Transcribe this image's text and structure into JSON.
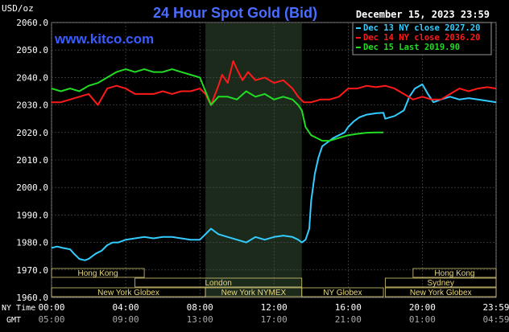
{
  "header": {
    "unit": "USD/oz",
    "title": "24 Hour Spot Gold (Bid)",
    "timestamp": "December 15, 2023 23:59",
    "watermark": "www.kitco.com"
  },
  "colors": {
    "background": "#000000",
    "plot_background": "#000000",
    "night_band": "#1c2a1c",
    "grid": "#555555",
    "axis_text": "#ffffff",
    "title": "#4a6cff",
    "watermark": "#3a5cff",
    "session_box": "#d8c878",
    "session_text": "#e8d880"
  },
  "chart_data": {
    "type": "line",
    "title": "24 Hour Spot Gold (Bid)",
    "ylabel": "USD/oz",
    "ylim": [
      1960,
      2060
    ],
    "yticks": [
      "2060.0",
      "2050.0",
      "2040.0",
      "2030.0",
      "2020.0",
      "2010.0",
      "2000.0",
      "1990.0",
      "1980.0",
      "1970.0",
      "1960.0"
    ],
    "xlim_hours": [
      0,
      23.98
    ],
    "xticks": [
      {
        "t": 0,
        "ny": "00:00",
        "gmt": "05:00"
      },
      {
        "t": 4,
        "ny": "04:00",
        "gmt": "09:00"
      },
      {
        "t": 8,
        "ny": "08:00",
        "gmt": "13:00"
      },
      {
        "t": 12,
        "ny": "12:00",
        "gmt": "17:00"
      },
      {
        "t": 16,
        "ny": "16:00",
        "gmt": "21:00"
      },
      {
        "t": 20,
        "ny": "20:00",
        "gmt": "01:00"
      },
      {
        "t": 23.98,
        "ny": "23:59",
        "gmt": "04:59"
      }
    ],
    "x_row_labels": {
      "ny": "NY Time",
      "gmt": "GMT"
    },
    "shaded_region": [
      8.3,
      13.5
    ],
    "grid": true,
    "legend_position": "top-right",
    "series": [
      {
        "name": "Dec 13 NY close 2027.20",
        "color": "#33ccff",
        "x": [
          0,
          0.3,
          0.6,
          1,
          1.2,
          1.5,
          1.8,
          2,
          2.2,
          2.4,
          2.7,
          3,
          3.3,
          3.6,
          4,
          4.5,
          5,
          5.5,
          6,
          6.5,
          7,
          7.5,
          8,
          8.3,
          8.6,
          9,
          9.5,
          10,
          10.5,
          11,
          11.5,
          12,
          12.5,
          13,
          13.3,
          13.5,
          13.7,
          13.9,
          14.0,
          14.2,
          14.4,
          14.6,
          14.8,
          15,
          15.2,
          15.5,
          15.8,
          16,
          16.3,
          16.6,
          17,
          17.5,
          17.9,
          18.0,
          18.5,
          19,
          19.3,
          19.6,
          20,
          20.3,
          20.6,
          21,
          21.5,
          22,
          22.5,
          23,
          23.5,
          23.98
        ],
        "y": [
          1978,
          1978.5,
          1978,
          1977.5,
          1976,
          1974,
          1973.5,
          1974,
          1975,
          1976,
          1977,
          1979,
          1980,
          1980,
          1981,
          1981.5,
          1982,
          1981.5,
          1982,
          1982,
          1981.5,
          1981,
          1981,
          1983,
          1985,
          1983,
          1982,
          1981,
          1980,
          1982,
          1981,
          1982,
          1982.5,
          1982,
          1981,
          1980,
          1981,
          1985,
          1995,
          2005,
          2011,
          2015,
          2016,
          2017,
          2018,
          2019,
          2020,
          2022,
          2024,
          2025.5,
          2026.5,
          2027,
          2027.2,
          2025,
          2026,
          2028,
          2033,
          2036,
          2037.5,
          2034,
          2031,
          2032,
          2033,
          2032,
          2032.5,
          2032,
          2031.5,
          2031
        ]
      },
      {
        "name": "Dec 14 NY close 2036.20",
        "color": "#ff1a1a",
        "x": [
          0,
          0.5,
          1,
          1.5,
          2,
          2.5,
          3,
          3.5,
          4,
          4.5,
          5,
          5.5,
          6,
          6.5,
          7,
          7.5,
          8,
          8.3,
          8.6,
          9,
          9.2,
          9.5,
          9.8,
          10,
          10.3,
          10.6,
          11,
          11.5,
          12,
          12.5,
          13,
          13.3,
          13.6,
          14,
          14.5,
          15,
          15.5,
          16,
          16.5,
          17,
          17.5,
          18,
          18.5,
          19,
          19.5,
          20,
          20.5,
          21,
          21.5,
          22,
          22.5,
          23,
          23.5,
          23.98
        ],
        "y": [
          2031,
          2031,
          2032,
          2033,
          2034,
          2030,
          2036,
          2037,
          2036,
          2034,
          2034,
          2034,
          2035,
          2034,
          2035,
          2035,
          2036,
          2034,
          2030,
          2037,
          2041,
          2038,
          2046,
          2043,
          2039,
          2042,
          2039,
          2040,
          2038,
          2039,
          2036,
          2033,
          2031,
          2031,
          2032,
          2032,
          2033,
          2036,
          2036,
          2037,
          2036.5,
          2037,
          2036,
          2034,
          2032,
          2033,
          2032,
          2032,
          2034,
          2036,
          2035,
          2036,
          2036.5,
          2036
        ]
      },
      {
        "name": "Dec 15 Last 2019.90",
        "color": "#22dd22",
        "x": [
          0,
          0.5,
          1,
          1.5,
          2,
          2.5,
          3,
          3.5,
          4,
          4.5,
          5,
          5.5,
          6,
          6.5,
          7,
          7.5,
          8,
          8.3,
          8.6,
          9,
          9.5,
          10,
          10.5,
          11,
          11.5,
          12,
          12.5,
          13,
          13.3,
          13.5,
          13.7,
          14,
          14.3,
          14.6,
          15,
          15.5,
          16,
          16.5,
          17,
          17.5,
          17.9
        ],
        "y": [
          2036,
          2035,
          2036,
          2035,
          2037,
          2038,
          2040,
          2042,
          2043,
          2042,
          2043,
          2042,
          2042,
          2043,
          2042,
          2041,
          2040,
          2035,
          2030,
          2033,
          2033,
          2032,
          2035,
          2033,
          2034,
          2032,
          2033,
          2032,
          2030,
          2028,
          2022,
          2019,
          2018,
          2017,
          2017,
          2018,
          2019,
          2019.5,
          2019.9,
          2020,
          2020
        ]
      }
    ]
  },
  "sessions": [
    {
      "label": "Hong Kong",
      "start": 0,
      "end": 5,
      "row": 0
    },
    {
      "label": "London",
      "start": 4.5,
      "end": 13.5,
      "row": 1
    },
    {
      "label": "New York Globex",
      "start": 0,
      "end": 8.3,
      "row": 2
    },
    {
      "label": "New York NYMEX",
      "start": 8.3,
      "end": 13.5,
      "row": 2
    },
    {
      "label": "NY Globex",
      "start": 13.5,
      "end": 17.9,
      "row": 2
    },
    {
      "label": "Hong Kong",
      "start": 19.5,
      "end": 23.98,
      "row": 0
    },
    {
      "label": "Sydney",
      "start": 18.0,
      "end": 23.98,
      "row": 1
    },
    {
      "label": "New York Globex",
      "start": 18.0,
      "end": 23.98,
      "row": 2
    }
  ]
}
